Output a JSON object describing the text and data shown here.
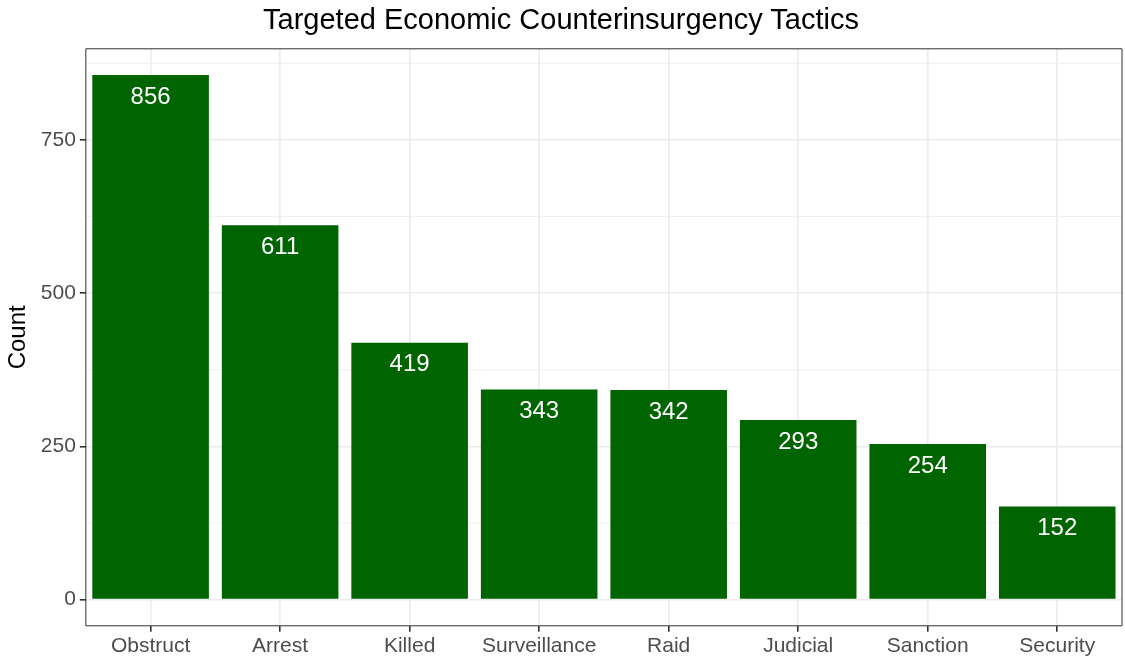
{
  "chart_data": {
    "type": "bar",
    "title": "Targeted Economic Counterinsurgency Tactics",
    "ylabel": "Count",
    "categories": [
      "Obstruct",
      "Arrest",
      "Killed",
      "Surveillance",
      "Raid",
      "Judicial",
      "Sanction",
      "Security"
    ],
    "values": [
      856,
      611,
      419,
      343,
      342,
      293,
      254,
      152
    ],
    "color": "#006400",
    "ylim": [
      -42.8,
      898.8
    ],
    "yticks": [
      0,
      250,
      500,
      750
    ],
    "grid": true,
    "data_labels": true
  }
}
